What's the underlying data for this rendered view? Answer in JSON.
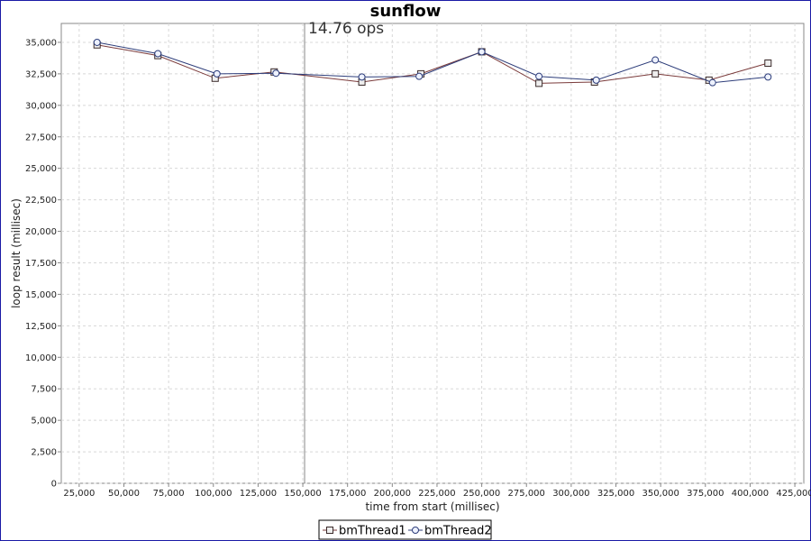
{
  "chart_data": {
    "type": "line",
    "title": "sunflow",
    "xlabel": "time from start (millisec)",
    "ylabel": "loop result (millisec)",
    "xlim": [
      15000,
      430000
    ],
    "ylim": [
      0,
      36500
    ],
    "x_ticks": [
      "25,000",
      "50,000",
      "75,000",
      "100,000",
      "125,000",
      "150,000",
      "175,000",
      "200,000",
      "225,000",
      "250,000",
      "275,000",
      "300,000",
      "325,000",
      "350,000",
      "375,000",
      "400,000",
      "425,000"
    ],
    "y_ticks": [
      "0",
      "2,500",
      "5,000",
      "7,500",
      "10,000",
      "12,500",
      "15,000",
      "17,500",
      "20,000",
      "22,500",
      "25,000",
      "27,500",
      "30,000",
      "32,500",
      "35,000"
    ],
    "grid": true,
    "legend_position": "bottom-center",
    "annotation": {
      "text": "14.76 ops",
      "x": 151000
    },
    "series": [
      {
        "name": "bmThread1",
        "color": "#7a3a3a",
        "marker": "square",
        "x": [
          35000,
          69000,
          101000,
          134000,
          183000,
          216000,
          250000,
          282000,
          313000,
          347000,
          377000,
          410000
        ],
        "y": [
          34800,
          33950,
          32150,
          32650,
          31850,
          32500,
          34250,
          31750,
          31850,
          32500,
          32000,
          33350
        ]
      },
      {
        "name": "bmThread2",
        "color": "#2d3d7a",
        "marker": "circle",
        "x": [
          35000,
          69000,
          102000,
          135000,
          183000,
          215000,
          250000,
          282000,
          314000,
          347000,
          379000,
          410000
        ],
        "y": [
          35000,
          34100,
          32500,
          32550,
          32250,
          32300,
          34250,
          32300,
          32000,
          33600,
          31800,
          32250
        ]
      }
    ]
  }
}
